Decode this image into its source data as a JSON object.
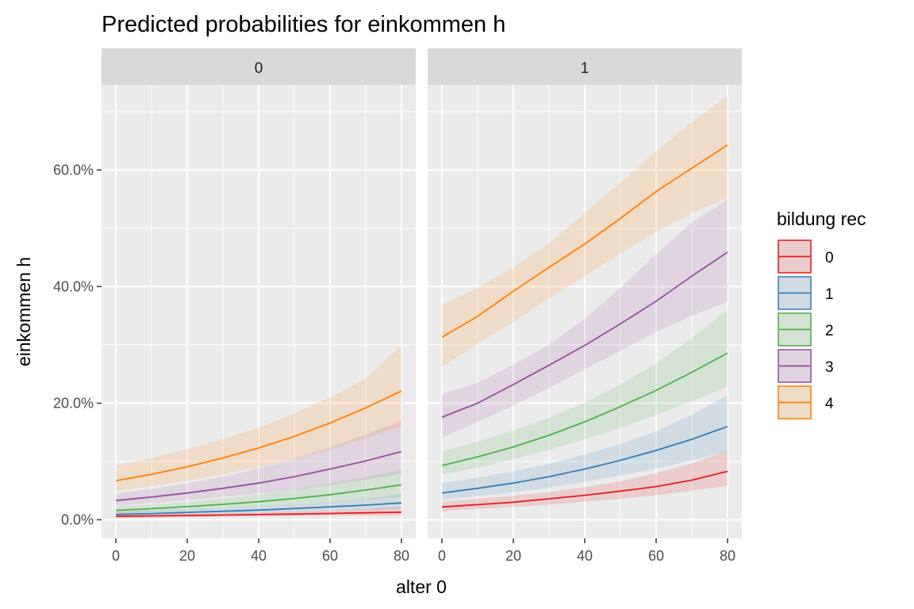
{
  "chart_data": {
    "type": "line",
    "title": "Predicted probabilities for einkommen h",
    "xlabel": "alter 0",
    "ylabel": "einkommen h",
    "xlim": [
      -4,
      84
    ],
    "ylim": [
      -0.032,
      0.746
    ],
    "x_ticks": [
      0,
      20,
      40,
      60,
      80
    ],
    "x_tick_labels": [
      "0",
      "20",
      "40",
      "60",
      "80"
    ],
    "y_ticks": [
      0,
      0.2,
      0.4,
      0.6
    ],
    "y_tick_labels": [
      "0.0%",
      "20.0%",
      "40.0%",
      "60.0%"
    ],
    "grid": true,
    "legend": {
      "title": "bildung rec",
      "position": "right",
      "entries": [
        "0",
        "1",
        "2",
        "3",
        "4"
      ]
    },
    "colors": {
      "0": "#E41A1C",
      "1": "#377EB8",
      "2": "#4DAF4A",
      "3": "#984EA3",
      "4": "#FF7F00"
    },
    "x": [
      0,
      10,
      20,
      30,
      40,
      50,
      60,
      70,
      80
    ],
    "panels": [
      {
        "strip_label": "0",
        "series": [
          {
            "name": "0",
            "values": [
              0.006,
              0.0066,
              0.0073,
              0.0081,
              0.0089,
              0.0098,
              0.0108,
              0.0119,
              0.013
            ],
            "lower": [
              0.003,
              0.0037,
              0.0045,
              0.0052,
              0.0058,
              0.0063,
              0.0068,
              0.0072,
              0.0075
            ],
            "upper": [
              0.012,
              0.0117,
              0.0114,
              0.0116,
              0.0125,
              0.014,
              0.016,
              0.0185,
              0.022
            ]
          },
          {
            "name": "1",
            "values": [
              0.009,
              0.0107,
              0.0127,
              0.0146,
              0.0166,
              0.0193,
              0.0222,
              0.0251,
              0.029
            ],
            "lower": [
              0.006,
              0.0074,
              0.009,
              0.0106,
              0.0122,
              0.0138,
              0.0155,
              0.0172,
              0.019
            ],
            "upper": [
              0.014,
              0.0158,
              0.0178,
              0.0201,
              0.0227,
              0.0262,
              0.0305,
              0.0355,
              0.044
            ]
          },
          {
            "name": "2",
            "values": [
              0.016,
              0.019,
              0.0225,
              0.0265,
              0.031,
              0.0365,
              0.043,
              0.051,
              0.06
            ],
            "lower": [
              0.011,
              0.0135,
              0.0162,
              0.019,
              0.022,
              0.0255,
              0.0295,
              0.034,
              0.039
            ],
            "upper": [
              0.023,
              0.0265,
              0.031,
              0.0365,
              0.0435,
              0.052,
              0.062,
              0.073,
              0.085
            ]
          },
          {
            "name": "3",
            "values": [
              0.033,
              0.039,
              0.046,
              0.054,
              0.063,
              0.074,
              0.087,
              0.101,
              0.117
            ],
            "lower": [
              0.024,
              0.0285,
              0.0335,
              0.039,
              0.045,
              0.052,
              0.06,
              0.069,
              0.079
            ],
            "upper": [
              0.045,
              0.053,
              0.0625,
              0.074,
              0.088,
              0.104,
              0.124,
              0.146,
              0.17
            ]
          },
          {
            "name": "4",
            "values": [
              0.067,
              0.078,
              0.091,
              0.106,
              0.123,
              0.143,
              0.166,
              0.192,
              0.221
            ],
            "lower": [
              0.049,
              0.0575,
              0.067,
              0.078,
              0.09,
              0.104,
              0.121,
              0.14,
              0.161
            ],
            "upper": [
              0.093,
              0.106,
              0.121,
              0.138,
              0.158,
              0.182,
              0.21,
              0.242,
              0.299
            ]
          }
        ]
      },
      {
        "strip_label": "1",
        "series": [
          {
            "name": "0",
            "values": [
              0.022,
              0.026,
              0.03,
              0.036,
              0.042,
              0.049,
              0.057,
              0.068,
              0.083
            ],
            "lower": [
              0.015,
              0.0185,
              0.022,
              0.026,
              0.031,
              0.036,
              0.042,
              0.05,
              0.058
            ],
            "upper": [
              0.031,
              0.036,
              0.041,
              0.0475,
              0.056,
              0.066,
              0.08,
              0.097,
              0.118
            ]
          },
          {
            "name": "1",
            "values": [
              0.046,
              0.054,
              0.063,
              0.074,
              0.087,
              0.102,
              0.119,
              0.138,
              0.16
            ],
            "lower": [
              0.034,
              0.0405,
              0.047,
              0.055,
              0.065,
              0.076,
              0.088,
              0.102,
              0.117
            ],
            "upper": [
              0.063,
              0.072,
              0.083,
              0.096,
              0.112,
              0.13,
              0.152,
              0.18,
              0.214
            ]
          },
          {
            "name": "2",
            "values": [
              0.093,
              0.108,
              0.125,
              0.145,
              0.168,
              0.194,
              0.222,
              0.253,
              0.286
            ],
            "lower": [
              0.077,
              0.0895,
              0.104,
              0.12,
              0.138,
              0.158,
              0.18,
              0.203,
              0.228
            ],
            "upper": [
              0.117,
              0.134,
              0.153,
              0.175,
              0.201,
              0.232,
              0.268,
              0.312,
              0.361
            ]
          },
          {
            "name": "3",
            "values": [
              0.176,
              0.2,
              0.232,
              0.265,
              0.299,
              0.336,
              0.375,
              0.418,
              0.459
            ],
            "lower": [
              0.141,
              0.168,
              0.196,
              0.226,
              0.258,
              0.29,
              0.322,
              0.35,
              0.374
            ],
            "upper": [
              0.216,
              0.235,
              0.266,
              0.3,
              0.345,
              0.398,
              0.455,
              0.51,
              0.549
            ]
          },
          {
            "name": "4",
            "values": [
              0.313,
              0.349,
              0.392,
              0.433,
              0.473,
              0.517,
              0.563,
              0.603,
              0.643
            ],
            "lower": [
              0.262,
              0.302,
              0.339,
              0.38,
              0.418,
              0.457,
              0.494,
              0.526,
              0.552
            ],
            "upper": [
              0.368,
              0.398,
              0.433,
              0.474,
              0.526,
              0.578,
              0.632,
              0.682,
              0.727
            ]
          }
        ]
      }
    ]
  }
}
